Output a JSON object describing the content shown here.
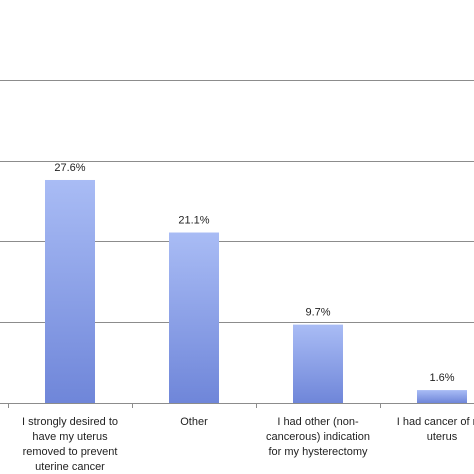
{
  "chart_data": {
    "type": "bar",
    "title": "",
    "xlabel": "",
    "ylabel": "",
    "ylim": [
      0,
      30
    ],
    "grid": true,
    "categories": [
      [
        "I strongly desired to",
        "have my uterus",
        "removed to prevent",
        "uterine cancer"
      ],
      [
        "Other"
      ],
      [
        "I had other (non-",
        "cancerous) indication",
        "for my hysterectomy"
      ],
      [
        "I had cancer of my",
        "uterus"
      ]
    ],
    "values": [
      27.6,
      21.1,
      9.7,
      1.6
    ],
    "data_labels": [
      "27.6%",
      "21.1%",
      "9.7%",
      "1.6%"
    ],
    "bar_color_top": "#a9bcf5",
    "bar_color_bottom": "#6f86d9"
  }
}
